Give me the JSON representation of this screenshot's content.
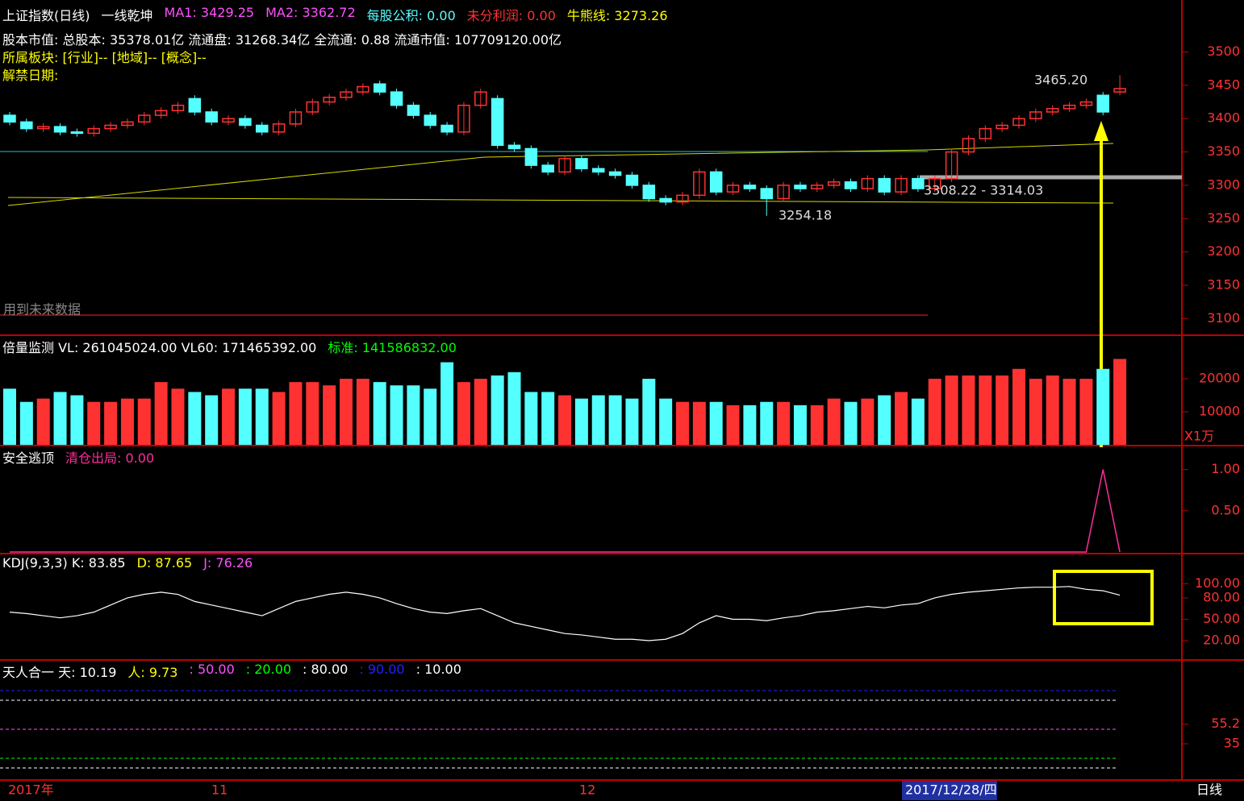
{
  "header": {
    "rows": [
      [
        {
          "text": "上证指数(日线)",
          "color": "#ffffff"
        },
        {
          "text": "一线乾坤",
          "color": "#ffffff"
        },
        {
          "text": "MA1: 3429.25",
          "color": "#ff50ff"
        },
        {
          "text": "MA2: 3362.72",
          "color": "#ff50ff"
        },
        {
          "text": "每股公积: 0.00",
          "color": "#54ffff"
        },
        {
          "text": "未分利润: 0.00",
          "color": "#ff3232"
        },
        {
          "text": "牛熊线: 3273.26",
          "color": "#ffff00"
        }
      ],
      [
        {
          "text": "股本市值: 总股本: 35378.01亿 流通盘: 31268.34亿 全流通: 0.88 流通市值:  107709120.00亿",
          "color": "#ffffff"
        }
      ],
      [
        {
          "text": "所属板块: [行业]-- [地域]-- [概念]--",
          "color": "#ffff00"
        }
      ],
      [
        {
          "text": "解禁日期:",
          "color": "#ffff00"
        }
      ]
    ]
  },
  "price": {
    "up_color": "#ff3232",
    "down_color": "#54ffff",
    "ylim": [
      3075,
      3578
    ],
    "yticks": [
      3100,
      3150,
      3200,
      3250,
      3300,
      3350,
      3400,
      3450,
      3500
    ],
    "open": [
      3405,
      3395,
      3385,
      3388,
      3380,
      3378,
      3385,
      3390,
      3395,
      3405,
      3412,
      3430,
      3410,
      3395,
      3400,
      3390,
      3380,
      3392,
      3410,
      3425,
      3432,
      3440,
      3452,
      3440,
      3420,
      3405,
      3390,
      3380,
      3420,
      3430,
      3360,
      3355,
      3330,
      3320,
      3340,
      3325,
      3320,
      3315,
      3300,
      3280,
      3275,
      3285,
      3320,
      3290,
      3300,
      3295,
      3280,
      3300,
      3295,
      3300,
      3305,
      3295,
      3310,
      3290,
      3310,
      3295,
      3310,
      3350,
      3370,
      3385,
      3390,
      3400,
      3410,
      3415,
      3420,
      3435,
      3440
    ],
    "close": [
      3395,
      3385,
      3388,
      3380,
      3378,
      3385,
      3390,
      3395,
      3405,
      3412,
      3420,
      3410,
      3395,
      3400,
      3390,
      3380,
      3392,
      3410,
      3425,
      3432,
      3440,
      3448,
      3440,
      3420,
      3405,
      3390,
      3380,
      3420,
      3440,
      3360,
      3355,
      3330,
      3320,
      3340,
      3325,
      3320,
      3315,
      3300,
      3280,
      3275,
      3285,
      3320,
      3290,
      3300,
      3295,
      3280,
      3300,
      3295,
      3300,
      3305,
      3295,
      3310,
      3290,
      3310,
      3295,
      3310,
      3350,
      3370,
      3385,
      3390,
      3400,
      3410,
      3415,
      3420,
      3425,
      3410,
      3445
    ],
    "high": [
      3410,
      3400,
      3393,
      3393,
      3385,
      3390,
      3395,
      3400,
      3410,
      3417,
      3425,
      3435,
      3415,
      3405,
      3405,
      3395,
      3397,
      3415,
      3430,
      3437,
      3445,
      3453,
      3457,
      3445,
      3425,
      3410,
      3395,
      3425,
      3445,
      3435,
      3365,
      3360,
      3335,
      3345,
      3345,
      3330,
      3325,
      3320,
      3305,
      3285,
      3290,
      3325,
      3325,
      3305,
      3305,
      3300,
      3305,
      3305,
      3305,
      3310,
      3310,
      3315,
      3315,
      3315,
      3315,
      3315,
      3355,
      3375,
      3390,
      3395,
      3405,
      3415,
      3420,
      3425,
      3430,
      3440,
      3465.2
    ],
    "low": [
      3390,
      3380,
      3380,
      3375,
      3373,
      3373,
      3380,
      3385,
      3390,
      3400,
      3407,
      3405,
      3390,
      3390,
      3385,
      3375,
      3375,
      3387,
      3405,
      3420,
      3427,
      3435,
      3435,
      3415,
      3400,
      3385,
      3375,
      3375,
      3415,
      3355,
      3350,
      3325,
      3315,
      3315,
      3320,
      3315,
      3310,
      3295,
      3275,
      3270,
      3270,
      3280,
      3285,
      3285,
      3290,
      3254.18,
      3275,
      3290,
      3290,
      3295,
      3290,
      3290,
      3285,
      3285,
      3290,
      3290,
      3305,
      3345,
      3365,
      3380,
      3385,
      3395,
      3405,
      3410,
      3415,
      3405,
      3435
    ],
    "annotations": [
      "3465.20",
      "3254.18",
      "3308.22 - 3314.03",
      "用到未来数据"
    ]
  },
  "volume": {
    "header": [
      {
        "text": "倍量监测 VL: 261045024.00 VL60: 171465392.00",
        "color": "#ffffff"
      },
      {
        "text": "标准: 141586832.00",
        "color": "#00ff00"
      }
    ],
    "ylim": [
      0,
      32700
    ],
    "yticks": [
      10000,
      20000
    ],
    "unit": "X1万",
    "values": [
      17000,
      13000,
      14000,
      16000,
      15000,
      13000,
      13000,
      14000,
      14000,
      19000,
      17000,
      16000,
      15000,
      17000,
      17000,
      17000,
      16000,
      19000,
      19000,
      18000,
      20000,
      20000,
      19000,
      18000,
      18000,
      17000,
      25000,
      19000,
      20000,
      21000,
      22000,
      16000,
      16000,
      15000,
      14000,
      15000,
      15000,
      14000,
      20000,
      14000,
      13000,
      13000,
      13000,
      12000,
      12000,
      13000,
      13000,
      12000,
      12000,
      14000,
      13000,
      14000,
      15000,
      16000,
      14000,
      20000,
      21000,
      21000,
      21000,
      21000,
      23000,
      20000,
      21000,
      20000,
      20000,
      23000,
      26000
    ]
  },
  "safety": {
    "header": [
      {
        "text": "安全逃顶",
        "color": "#ffffff"
      },
      {
        "text": "清仓出局: 0.00",
        "color": "#ff2d9a"
      }
    ],
    "color": "#ff2d9a",
    "ylim": [
      0,
      1.27
    ],
    "yticks": [
      {
        "value": 0.5,
        "label": "0.50"
      },
      {
        "value": 1,
        "label": "1.00"
      }
    ],
    "values": [
      0,
      0,
      0,
      0,
      0,
      0,
      0,
      0,
      0,
      0,
      0,
      0,
      0,
      0,
      0,
      0,
      0,
      0,
      0,
      0,
      0,
      0,
      0,
      0,
      0,
      0,
      0,
      0,
      0,
      0,
      0,
      0,
      0,
      0,
      0,
      0,
      0,
      0,
      0,
      0,
      0,
      0,
      0,
      0,
      0,
      0,
      0,
      0,
      0,
      0,
      0,
      0,
      0,
      0,
      0,
      0,
      0,
      0,
      0,
      0,
      0,
      0,
      0,
      0,
      0,
      1,
      0
    ]
  },
  "kdj": {
    "header": [
      {
        "text": "KDJ(9,3,3) K: 83.85",
        "color": "#ffffff"
      },
      {
        "text": "D: 87.65",
        "color": "#ffff00"
      },
      {
        "text": "J: 76.26",
        "color": "#ff50ff"
      }
    ],
    "color": "#ffffff",
    "ylim": [
      -6,
      141
    ],
    "yticks": [
      {
        "value": 20,
        "label": "20.00"
      },
      {
        "value": 50,
        "label": "50.00"
      },
      {
        "value": 80,
        "label": "80.00"
      },
      {
        "value": 100,
        "label": "100.00"
      }
    ],
    "values": [
      60,
      58,
      55,
      52,
      55,
      60,
      70,
      80,
      85,
      88,
      85,
      75,
      70,
      65,
      60,
      55,
      65,
      75,
      80,
      85,
      88,
      85,
      80,
      72,
      65,
      60,
      58,
      62,
      65,
      55,
      45,
      40,
      35,
      30,
      28,
      25,
      22,
      22,
      20,
      22,
      30,
      45,
      55,
      50,
      50,
      48,
      52,
      55,
      60,
      62,
      65,
      68,
      66,
      70,
      72,
      80,
      85,
      88,
      90,
      92,
      94,
      95,
      95,
      96,
      92,
      90,
      83.85
    ]
  },
  "tianren": {
    "header": [
      {
        "text": "天人合一 天: 10.19",
        "color": "#ffffff"
      },
      {
        "text": "人: 9.73",
        "color": "#ffff00"
      },
      {
        "text": ": 50.00",
        "color": "#ff50ff"
      },
      {
        "text": ": 20.00",
        "color": "#00ff00"
      },
      {
        "text": ": 80.00",
        "color": "#ffffff"
      },
      {
        "text": ": 90.00",
        "color": "#2020ff"
      },
      {
        "text": ": 10.00",
        "color": "#ffffff"
      }
    ],
    "ylim": [
      -2.5,
      120.8
    ],
    "yticks": [
      35,
      {
        "value": 55.2,
        "label": "55.2"
      }
    ],
    "levels": [
      {
        "value": 90,
        "color": "#2020ff"
      },
      {
        "value": 80,
        "color": "#ffffff"
      },
      {
        "value": 50,
        "color": "#ff50ff"
      },
      {
        "value": 20,
        "color": "#00ff00"
      },
      {
        "value": 10,
        "color": "#ffffff"
      }
    ]
  },
  "footer": {
    "labels": [
      "2017年",
      "11",
      "12",
      "2017/12/28/四"
    ],
    "period": "日线"
  }
}
